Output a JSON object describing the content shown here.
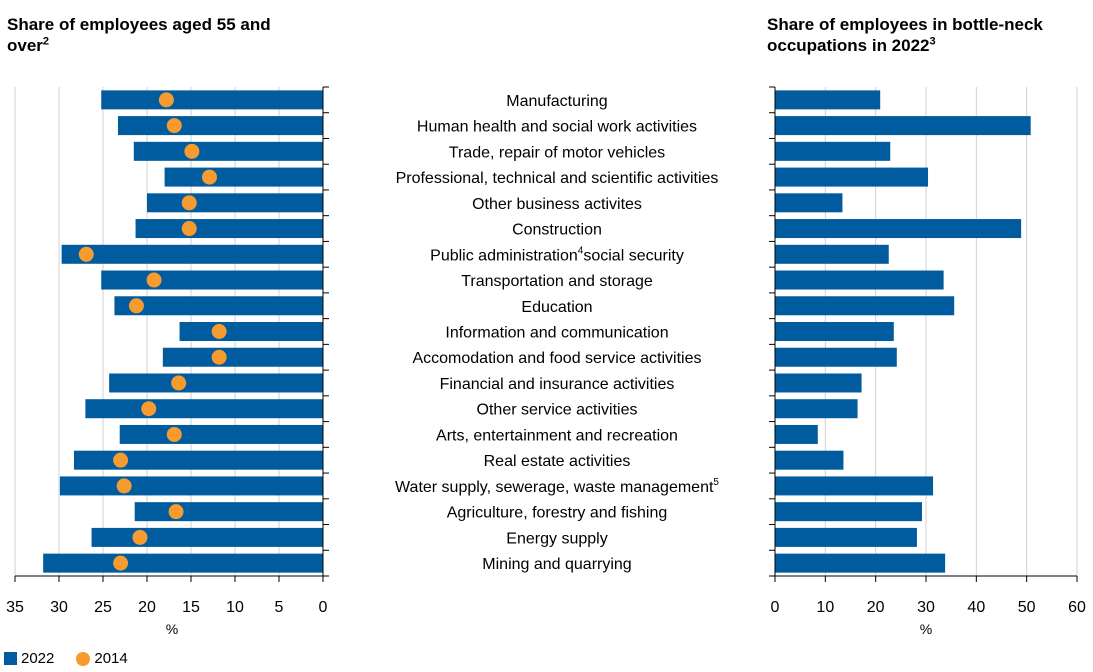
{
  "left_panel": {
    "title": "Share of employees aged 55 and over",
    "title_sup": "2",
    "xlabel": "%"
  },
  "right_panel": {
    "title": "Share of employees in bottle-neck occupations in 2022",
    "title_sup": "3",
    "xlabel": "%"
  },
  "legend": {
    "series_2022": "2022",
    "series_2014": "2014"
  },
  "colors": {
    "bar": "#005c9e",
    "dot": "#f59b2f",
    "grid": "#d0d0d0"
  },
  "chart_data": [
    {
      "type": "bar",
      "orientation": "horizontal-reversed",
      "xlim": [
        35,
        0
      ],
      "xticks": [
        35,
        30,
        25,
        20,
        15,
        10,
        5,
        0
      ],
      "xlabel": "%",
      "categories": [
        {
          "label": "Manufacturing"
        },
        {
          "label": "Human health and social work activities"
        },
        {
          "label": "Trade, repair of motor vehicles"
        },
        {
          "label": "Professional, technical and scientific activities"
        },
        {
          "label": "Other business activites"
        },
        {
          "label": "Construction"
        },
        {
          "label": "Public administration",
          "sup": "4",
          "rest": "social security"
        },
        {
          "label": "Transportation and storage"
        },
        {
          "label": "Education"
        },
        {
          "label": "Information and communication"
        },
        {
          "label": "Accomodation and food service activities"
        },
        {
          "label": "Financial and insurance activities"
        },
        {
          "label": "Other service activities"
        },
        {
          "label": "Arts, entertainment and recreation"
        },
        {
          "label": "Real estate activities"
        },
        {
          "label": "Water supply, sewerage, waste management",
          "sup": "5"
        },
        {
          "label": "Agriculture, forestry and fishing"
        },
        {
          "label": "Energy supply"
        },
        {
          "label": "Mining and quarrying"
        }
      ],
      "series": [
        {
          "name": "2022",
          "values": [
            25.2,
            23.3,
            21.5,
            18.0,
            20.0,
            21.3,
            29.7,
            25.2,
            23.7,
            16.3,
            18.2,
            24.3,
            27.0,
            23.1,
            28.3,
            29.9,
            21.4,
            26.3,
            31.8
          ]
        },
        {
          "name": "2014",
          "values": [
            17.8,
            16.9,
            14.9,
            12.9,
            15.2,
            15.2,
            26.9,
            19.2,
            21.2,
            11.8,
            11.8,
            16.4,
            19.8,
            16.9,
            23.0,
            22.6,
            16.7,
            20.8,
            23.0
          ]
        }
      ]
    },
    {
      "type": "bar",
      "orientation": "horizontal",
      "xlim": [
        0,
        60
      ],
      "xticks": [
        0,
        10,
        20,
        30,
        40,
        50,
        60
      ],
      "xlabel": "%",
      "series": [
        {
          "name": "2022",
          "values": [
            20.9,
            50.8,
            22.9,
            30.4,
            13.4,
            48.9,
            22.6,
            33.5,
            35.6,
            23.6,
            24.2,
            17.2,
            16.4,
            8.5,
            13.6,
            31.4,
            29.2,
            28.2,
            33.8
          ]
        }
      ]
    }
  ]
}
